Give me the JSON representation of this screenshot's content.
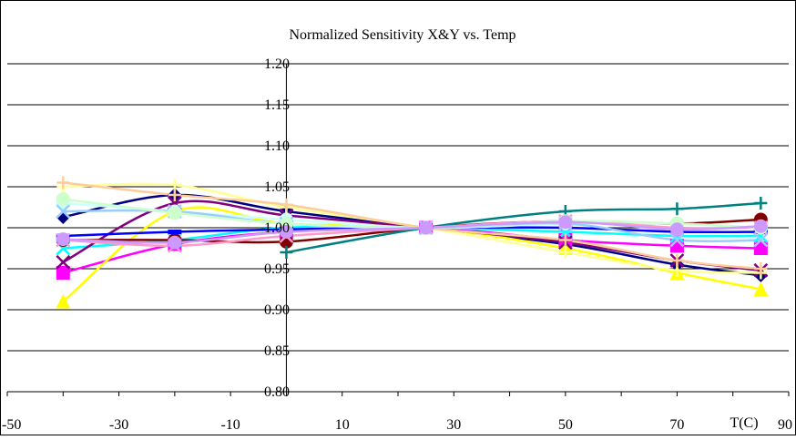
{
  "chart_data": {
    "type": "line",
    "title": "Normalized Sensitivity X&Y vs. Temp",
    "xlabel": "T(C)",
    "ylabel": "",
    "x_ticks": [
      "-50",
      "-30",
      "-10",
      "10",
      "30",
      "50",
      "70",
      "90"
    ],
    "y_ticks": [
      "1.20",
      "1.15",
      "1.10",
      "1.05",
      "1.00",
      "0.95",
      "0.90",
      "0.85",
      "0.80"
    ],
    "xlim": [
      -50,
      90
    ],
    "ylim": [
      0.8,
      1.2
    ],
    "grid": "horizontal",
    "legend": "none",
    "x": [
      -40,
      -20,
      0,
      25,
      50,
      70,
      85
    ],
    "series": [
      {
        "color": "#000080",
        "marker": "diamond",
        "values": [
          1.013,
          1.04,
          1.02,
          1.0,
          0.98,
          0.955,
          0.942
        ]
      },
      {
        "color": "#ff00ff",
        "marker": "square",
        "values": [
          0.945,
          0.98,
          0.995,
          1.0,
          0.985,
          0.978,
          0.975
        ]
      },
      {
        "color": "#ffff00",
        "marker": "triangle",
        "values": [
          0.91,
          1.02,
          1.005,
          1.0,
          0.975,
          0.945,
          0.925
        ]
      },
      {
        "color": "#00ffff",
        "marker": "x",
        "values": [
          0.975,
          0.985,
          1.0,
          1.0,
          0.995,
          0.99,
          0.99
        ]
      },
      {
        "color": "#800080",
        "marker": "x",
        "values": [
          0.958,
          1.03,
          1.015,
          1.0,
          0.982,
          0.96,
          0.948
        ]
      },
      {
        "color": "#800000",
        "marker": "circle",
        "values": [
          0.985,
          0.985,
          0.983,
          1.0,
          1.008,
          1.005,
          1.01
        ]
      },
      {
        "color": "#008080",
        "marker": "plus",
        "values": [
          null,
          null,
          0.97,
          1.0,
          1.02,
          1.023,
          1.03
        ]
      },
      {
        "color": "#0000ff",
        "marker": "dash",
        "values": [
          0.99,
          0.995,
          0.998,
          1.0,
          1.0,
          0.995,
          0.995
        ]
      },
      {
        "color": "#ccffff",
        "marker": "circle",
        "values": [
          1.03,
          1.02,
          1.01,
          1.0,
          1.005,
          1.005,
          1.0
        ]
      },
      {
        "color": "#ff99cc",
        "marker": "x",
        "values": [
          0.985,
          0.978,
          0.99,
          1.0,
          1.008,
          1.0,
          1.0
        ]
      },
      {
        "color": "#99ccff",
        "marker": "x",
        "values": [
          1.02,
          1.02,
          1.005,
          1.0,
          1.005,
          0.985,
          0.985
        ]
      },
      {
        "color": "#ffff99",
        "marker": "plus",
        "values": [
          1.05,
          1.052,
          1.025,
          1.0,
          0.97,
          0.948,
          0.945
        ]
      },
      {
        "color": "#ffcc99",
        "marker": "plus",
        "values": [
          1.055,
          1.04,
          1.028,
          1.0,
          0.985,
          0.96,
          0.95
        ]
      },
      {
        "color": "#ccffcc",
        "marker": "circle",
        "values": [
          1.035,
          1.018,
          1.005,
          1.0,
          1.008,
          1.005,
          1.0
        ]
      },
      {
        "color": "#cc99ff",
        "marker": "circle",
        "values": [
          0.986,
          0.982,
          0.995,
          1.0,
          1.007,
          0.998,
          1.002
        ]
      }
    ]
  }
}
